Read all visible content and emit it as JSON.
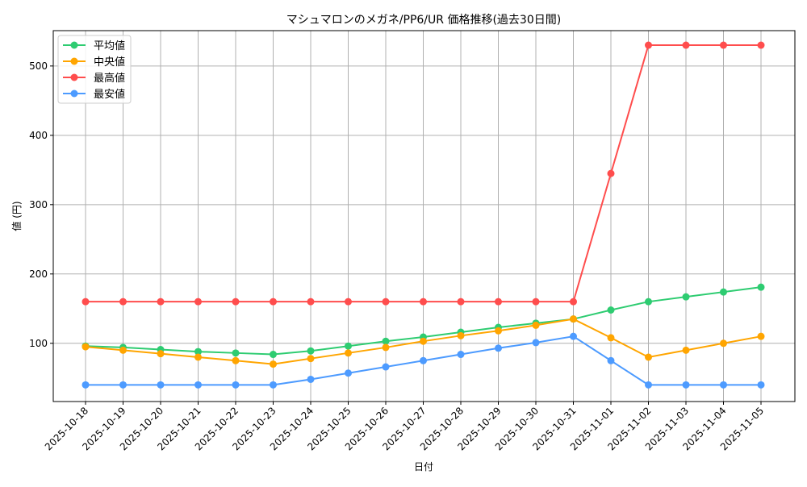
{
  "chart_data": {
    "type": "line",
    "title": "マシュマロンのメガネ/PP6/UR 価格推移(過去30日間)",
    "xlabel": "日付",
    "ylabel": "値 (円)",
    "categories": [
      "2025-10-18",
      "2025-10-19",
      "2025-10-20",
      "2025-10-21",
      "2025-10-22",
      "2025-10-23",
      "2025-10-24",
      "2025-10-25",
      "2025-10-26",
      "2025-10-27",
      "2025-10-28",
      "2025-10-29",
      "2025-10-30",
      "2025-10-31",
      "2025-11-01",
      "2025-11-02",
      "2025-11-03",
      "2025-11-04",
      "2025-11-05"
    ],
    "ylim": [
      16,
      551
    ],
    "yticks": [
      100,
      200,
      300,
      400,
      500
    ],
    "grid": true,
    "legend_position": "top-left",
    "series": [
      {
        "name": "平均値",
        "color": "#2ecc71",
        "values": [
          96,
          94,
          91,
          88,
          86,
          84,
          89,
          96,
          103,
          109,
          116,
          123,
          129,
          135,
          148,
          160,
          167,
          174,
          181
        ]
      },
      {
        "name": "中央値",
        "color": "#ffa500",
        "values": [
          95,
          90,
          85,
          80,
          75,
          70,
          78,
          86,
          94,
          103,
          111,
          118,
          126,
          135,
          108,
          80,
          90,
          100,
          110
        ]
      },
      {
        "name": "最高値",
        "color": "#ff4d4d",
        "values": [
          160,
          160,
          160,
          160,
          160,
          160,
          160,
          160,
          160,
          160,
          160,
          160,
          160,
          160,
          345,
          530,
          530,
          530,
          530
        ]
      },
      {
        "name": "最安値",
        "color": "#4d9bff",
        "values": [
          40,
          40,
          40,
          40,
          40,
          40,
          48,
          57,
          66,
          75,
          84,
          93,
          101,
          110,
          75,
          40,
          40,
          40,
          40
        ]
      }
    ]
  }
}
